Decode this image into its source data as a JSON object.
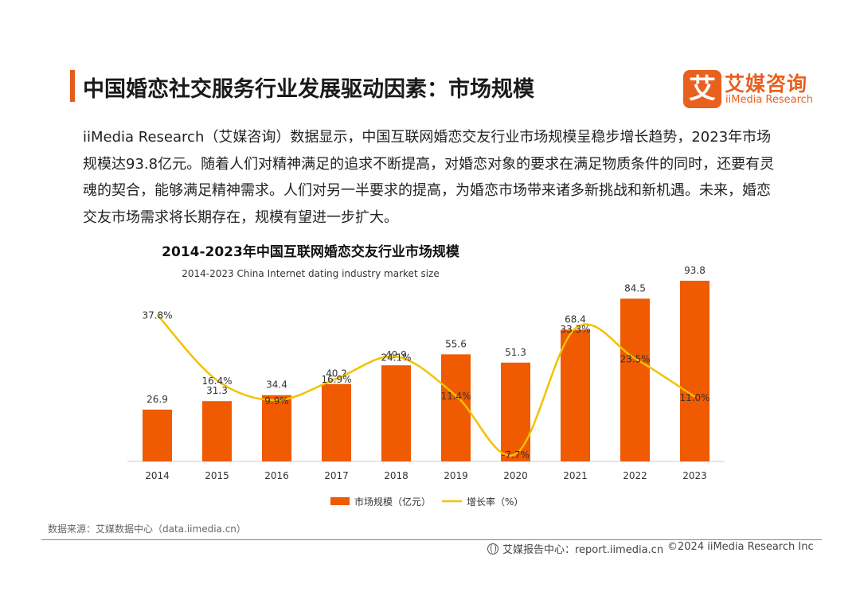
{
  "header": {
    "title": "中国婚恋社交服务行业发展驱动因素：市场规模",
    "logo_mark": "艾",
    "logo_cn": "艾媒咨询",
    "logo_en": "iiMedia Research"
  },
  "paragraph": "iiMedia Research（艾媒咨询）数据显示，中国互联网婚恋交友行业市场规模呈稳步增长趋势，2023年市场规模达93.8亿元。随着人们对精神满足的追求不断提高，对婚恋对象的要求在满足物质条件的同时，还要有灵魂的契合，能够满足精神需求。人们对另一半要求的提高，为婚恋市场带来诸多新挑战和新机遇。未来，婚恋交友市场需求将长期存在，规模有望进一步扩大。",
  "chart_data": {
    "type": "bar",
    "title": "2014-2023年中国互联网婚恋交友行业市场规模",
    "subtitle": "2014-2023 China Internet dating industry market size",
    "categories": [
      "2014",
      "2015",
      "2016",
      "2017",
      "2018",
      "2019",
      "2020",
      "2021",
      "2022",
      "2023"
    ],
    "series": [
      {
        "name": "市场规模（亿元）",
        "kind": "bar",
        "color": "#f05a00",
        "values": [
          26.9,
          31.3,
          34.4,
          40.2,
          49.9,
          55.6,
          51.3,
          68.4,
          84.5,
          93.8
        ],
        "labels": [
          "26.9",
          "31.3",
          "34.4",
          "40.2",
          "49.9",
          "55.6",
          "51.3",
          "68.4",
          "84.5",
          "93.8"
        ]
      },
      {
        "name": "增长率（%）",
        "kind": "line",
        "color": "#f2c200",
        "values": [
          37.8,
          16.4,
          9.9,
          16.9,
          24.1,
          11.4,
          -7.7,
          33.3,
          23.5,
          11.0
        ],
        "labels": [
          "37.8%",
          "16.4%",
          "9.9%",
          "16.9%",
          "24.1%",
          "11.4%",
          "-7.7%",
          "33.3%",
          "23.5%",
          "11.0%"
        ]
      }
    ],
    "ylim": [
      0,
      95
    ],
    "y2lim": [
      -8,
      40
    ],
    "legend_position": "bottom"
  },
  "source": "数据来源：艾媒数据中心（data.iimedia.cn）",
  "footer": {
    "left": "艾媒报告中心：report.iimedia.cn",
    "right": "©2024  iiMedia Research Inc"
  }
}
